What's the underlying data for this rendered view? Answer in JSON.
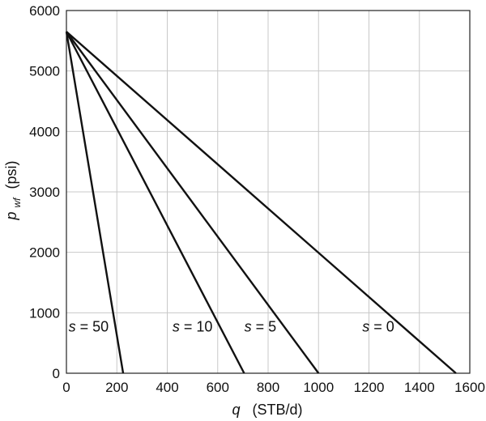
{
  "chart_data": {
    "type": "line",
    "xlabel": {
      "var": "q",
      "unit": "(STB/d)"
    },
    "ylabel": {
      "var": "p",
      "sub": "wf",
      "unit": "(psi)"
    },
    "xlim": [
      0,
      1600
    ],
    "ylim": [
      0,
      6000
    ],
    "x_ticks": [
      "0",
      "200",
      "400",
      "600",
      "800",
      "1000",
      "1200",
      "1400",
      "1600"
    ],
    "y_ticks": [
      "0",
      "1000",
      "2000",
      "3000",
      "4000",
      "5000",
      "6000"
    ],
    "grid": true,
    "series": [
      {
        "label_var": "s",
        "label_eq": " = 50",
        "x": [
          0,
          225
        ],
        "y": [
          5650,
          0
        ]
      },
      {
        "label_var": "s",
        "label_eq": " = 10",
        "x": [
          0,
          705
        ],
        "y": [
          5650,
          0
        ]
      },
      {
        "label_var": "s",
        "label_eq": " = 5",
        "x": [
          0,
          1000
        ],
        "y": [
          5650,
          0
        ]
      },
      {
        "label_var": "s",
        "label_eq": " = 0",
        "x": [
          0,
          1545
        ],
        "y": [
          5650,
          0
        ]
      }
    ]
  }
}
